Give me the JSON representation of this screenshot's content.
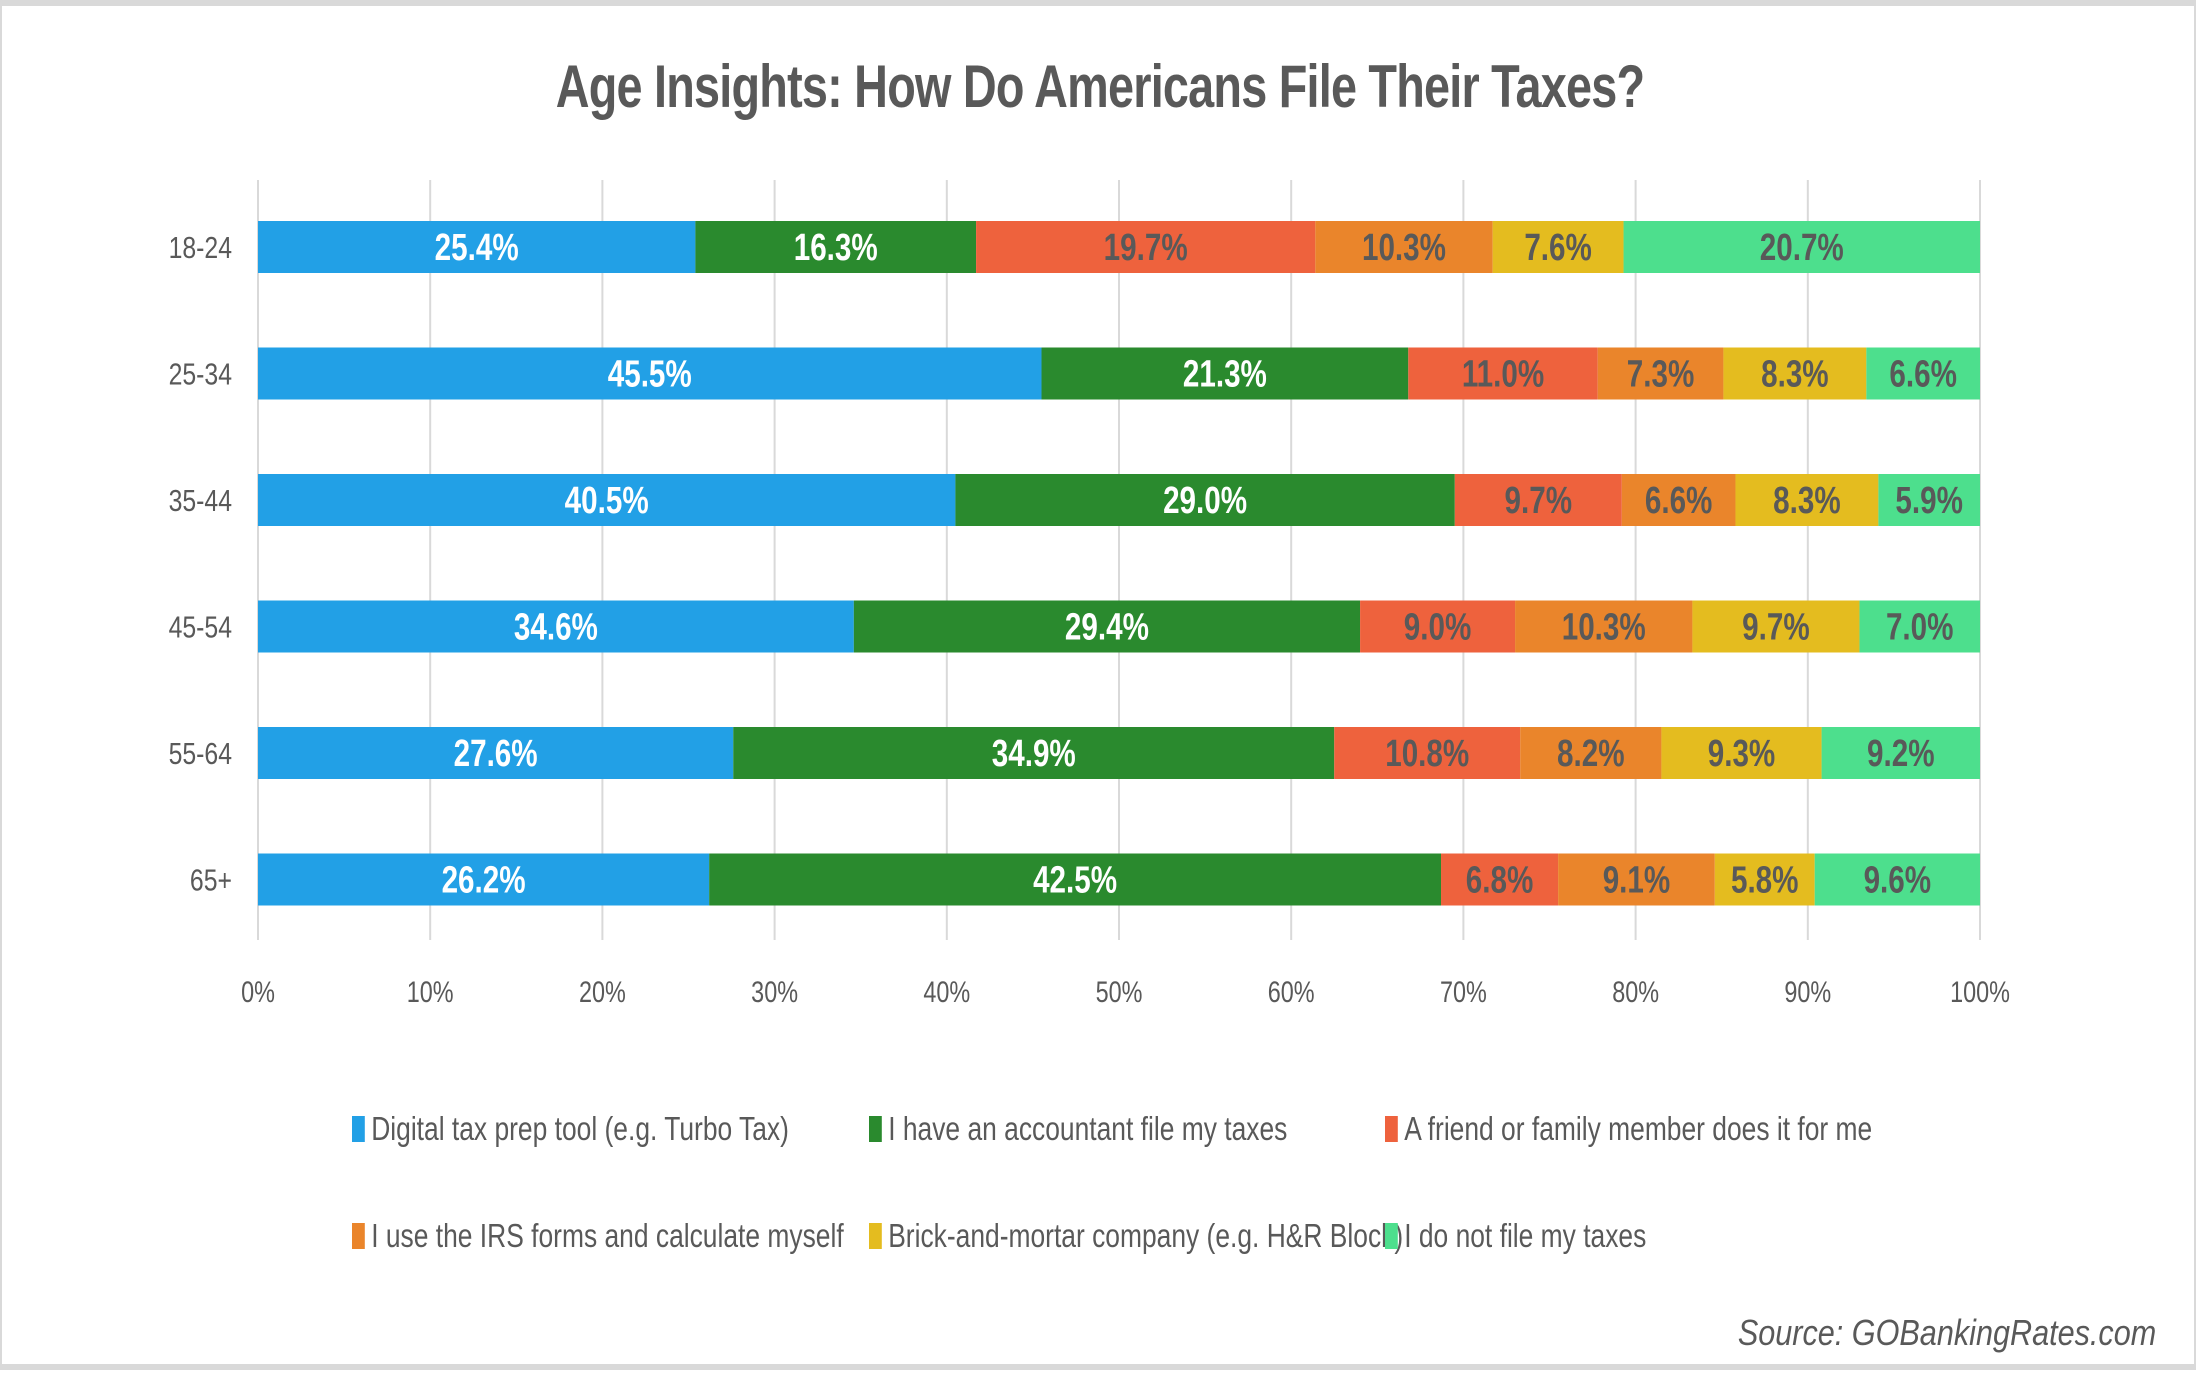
{
  "chart_data": {
    "type": "bar",
    "orientation": "horizontal",
    "stacked": "percent",
    "title": "Age Insights: How Do Americans File Their Taxes?",
    "xlabel": "",
    "ylabel": "",
    "xlim": [
      0,
      100
    ],
    "x_ticks": [
      "0%",
      "10%",
      "20%",
      "30%",
      "40%",
      "50%",
      "60%",
      "70%",
      "80%",
      "90%",
      "100%"
    ],
    "grid": true,
    "legend_position": "bottom",
    "categories": [
      "18-24",
      "25-34",
      "35-44",
      "45-54",
      "55-64",
      "65+"
    ],
    "series": [
      {
        "name": "Digital tax prep tool (e.g. Turbo Tax)",
        "color": "#22a0e6",
        "label_color": "#ffffff",
        "values": [
          25.4,
          45.5,
          40.5,
          34.6,
          27.6,
          26.2
        ]
      },
      {
        "name": "I have an accountant file my taxes",
        "color": "#2a8a2e",
        "label_color": "#ffffff",
        "values": [
          16.3,
          21.3,
          29.0,
          29.4,
          34.9,
          42.5
        ]
      },
      {
        "name": "A friend or family member does it for me",
        "color": "#ee623d",
        "label_color": "#595959",
        "values": [
          19.7,
          11.0,
          9.7,
          9.0,
          10.8,
          6.8
        ]
      },
      {
        "name": "I use the IRS forms and calculate myself",
        "color": "#ea852b",
        "label_color": "#595959",
        "values": [
          10.3,
          7.3,
          6.6,
          10.3,
          8.2,
          9.1
        ]
      },
      {
        "name": "Brick-and-mortar company (e.g. H&R Block)",
        "color": "#e4bc1f",
        "label_color": "#595959",
        "values": [
          7.6,
          8.3,
          8.3,
          9.7,
          9.3,
          5.8
        ]
      },
      {
        "name": "I do not file my taxes",
        "color": "#4ddf8d",
        "label_color": "#595959",
        "values": [
          20.7,
          6.6,
          5.9,
          7.0,
          9.2,
          9.6
        ]
      }
    ],
    "source": "Source: GOBankingRates.com"
  }
}
